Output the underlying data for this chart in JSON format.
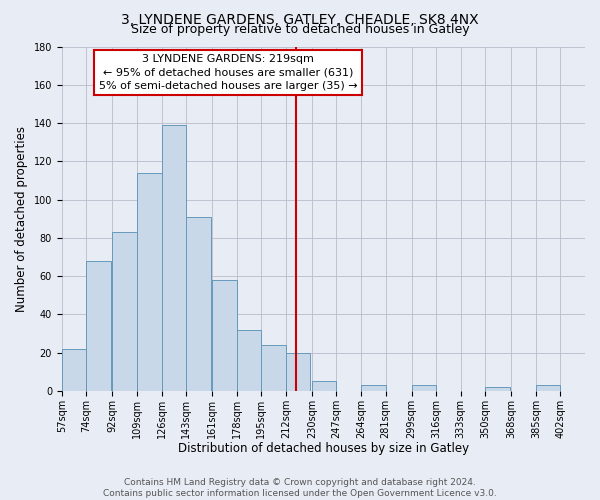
{
  "title": "3, LYNDENE GARDENS, GATLEY, CHEADLE, SK8 4NX",
  "subtitle": "Size of property relative to detached houses in Gatley",
  "xlabel": "Distribution of detached houses by size in Gatley",
  "ylabel": "Number of detached properties",
  "bin_labels": [
    "57sqm",
    "74sqm",
    "92sqm",
    "109sqm",
    "126sqm",
    "143sqm",
    "161sqm",
    "178sqm",
    "195sqm",
    "212sqm",
    "230sqm",
    "247sqm",
    "264sqm",
    "281sqm",
    "299sqm",
    "316sqm",
    "333sqm",
    "350sqm",
    "368sqm",
    "385sqm",
    "402sqm"
  ],
  "bin_edges": [
    57,
    74,
    92,
    109,
    126,
    143,
    161,
    178,
    195,
    212,
    230,
    247,
    264,
    281,
    299,
    316,
    333,
    350,
    368,
    385,
    402
  ],
  "bar_heights": [
    22,
    68,
    83,
    114,
    139,
    91,
    58,
    32,
    24,
    20,
    5,
    0,
    3,
    0,
    3,
    0,
    0,
    2,
    0,
    3
  ],
  "bar_color": "#c8d8e8",
  "bar_edgecolor": "#6699bb",
  "property_value": 219,
  "vline_color": "#cc0000",
  "annotation_line1": "3 LYNDENE GARDENS: 219sqm",
  "annotation_line2": "← 95% of detached houses are smaller (631)",
  "annotation_line3": "5% of semi-detached houses are larger (35) →",
  "annotation_box_edgecolor": "#cc0000",
  "annotation_box_facecolor": "#ffffff",
  "ylim": [
    0,
    180
  ],
  "yticks": [
    0,
    20,
    40,
    60,
    80,
    100,
    120,
    140,
    160,
    180
  ],
  "grid_color": "#bbbbcc",
  "background_color": "#e8ecf4",
  "plot_bg_color": "#e8ecf4",
  "footer_line1": "Contains HM Land Registry data © Crown copyright and database right 2024.",
  "footer_line2": "Contains public sector information licensed under the Open Government Licence v3.0.",
  "title_fontsize": 10,
  "subtitle_fontsize": 9,
  "axis_label_fontsize": 8.5,
  "tick_fontsize": 7,
  "annotation_fontsize": 8,
  "footer_fontsize": 6.5
}
